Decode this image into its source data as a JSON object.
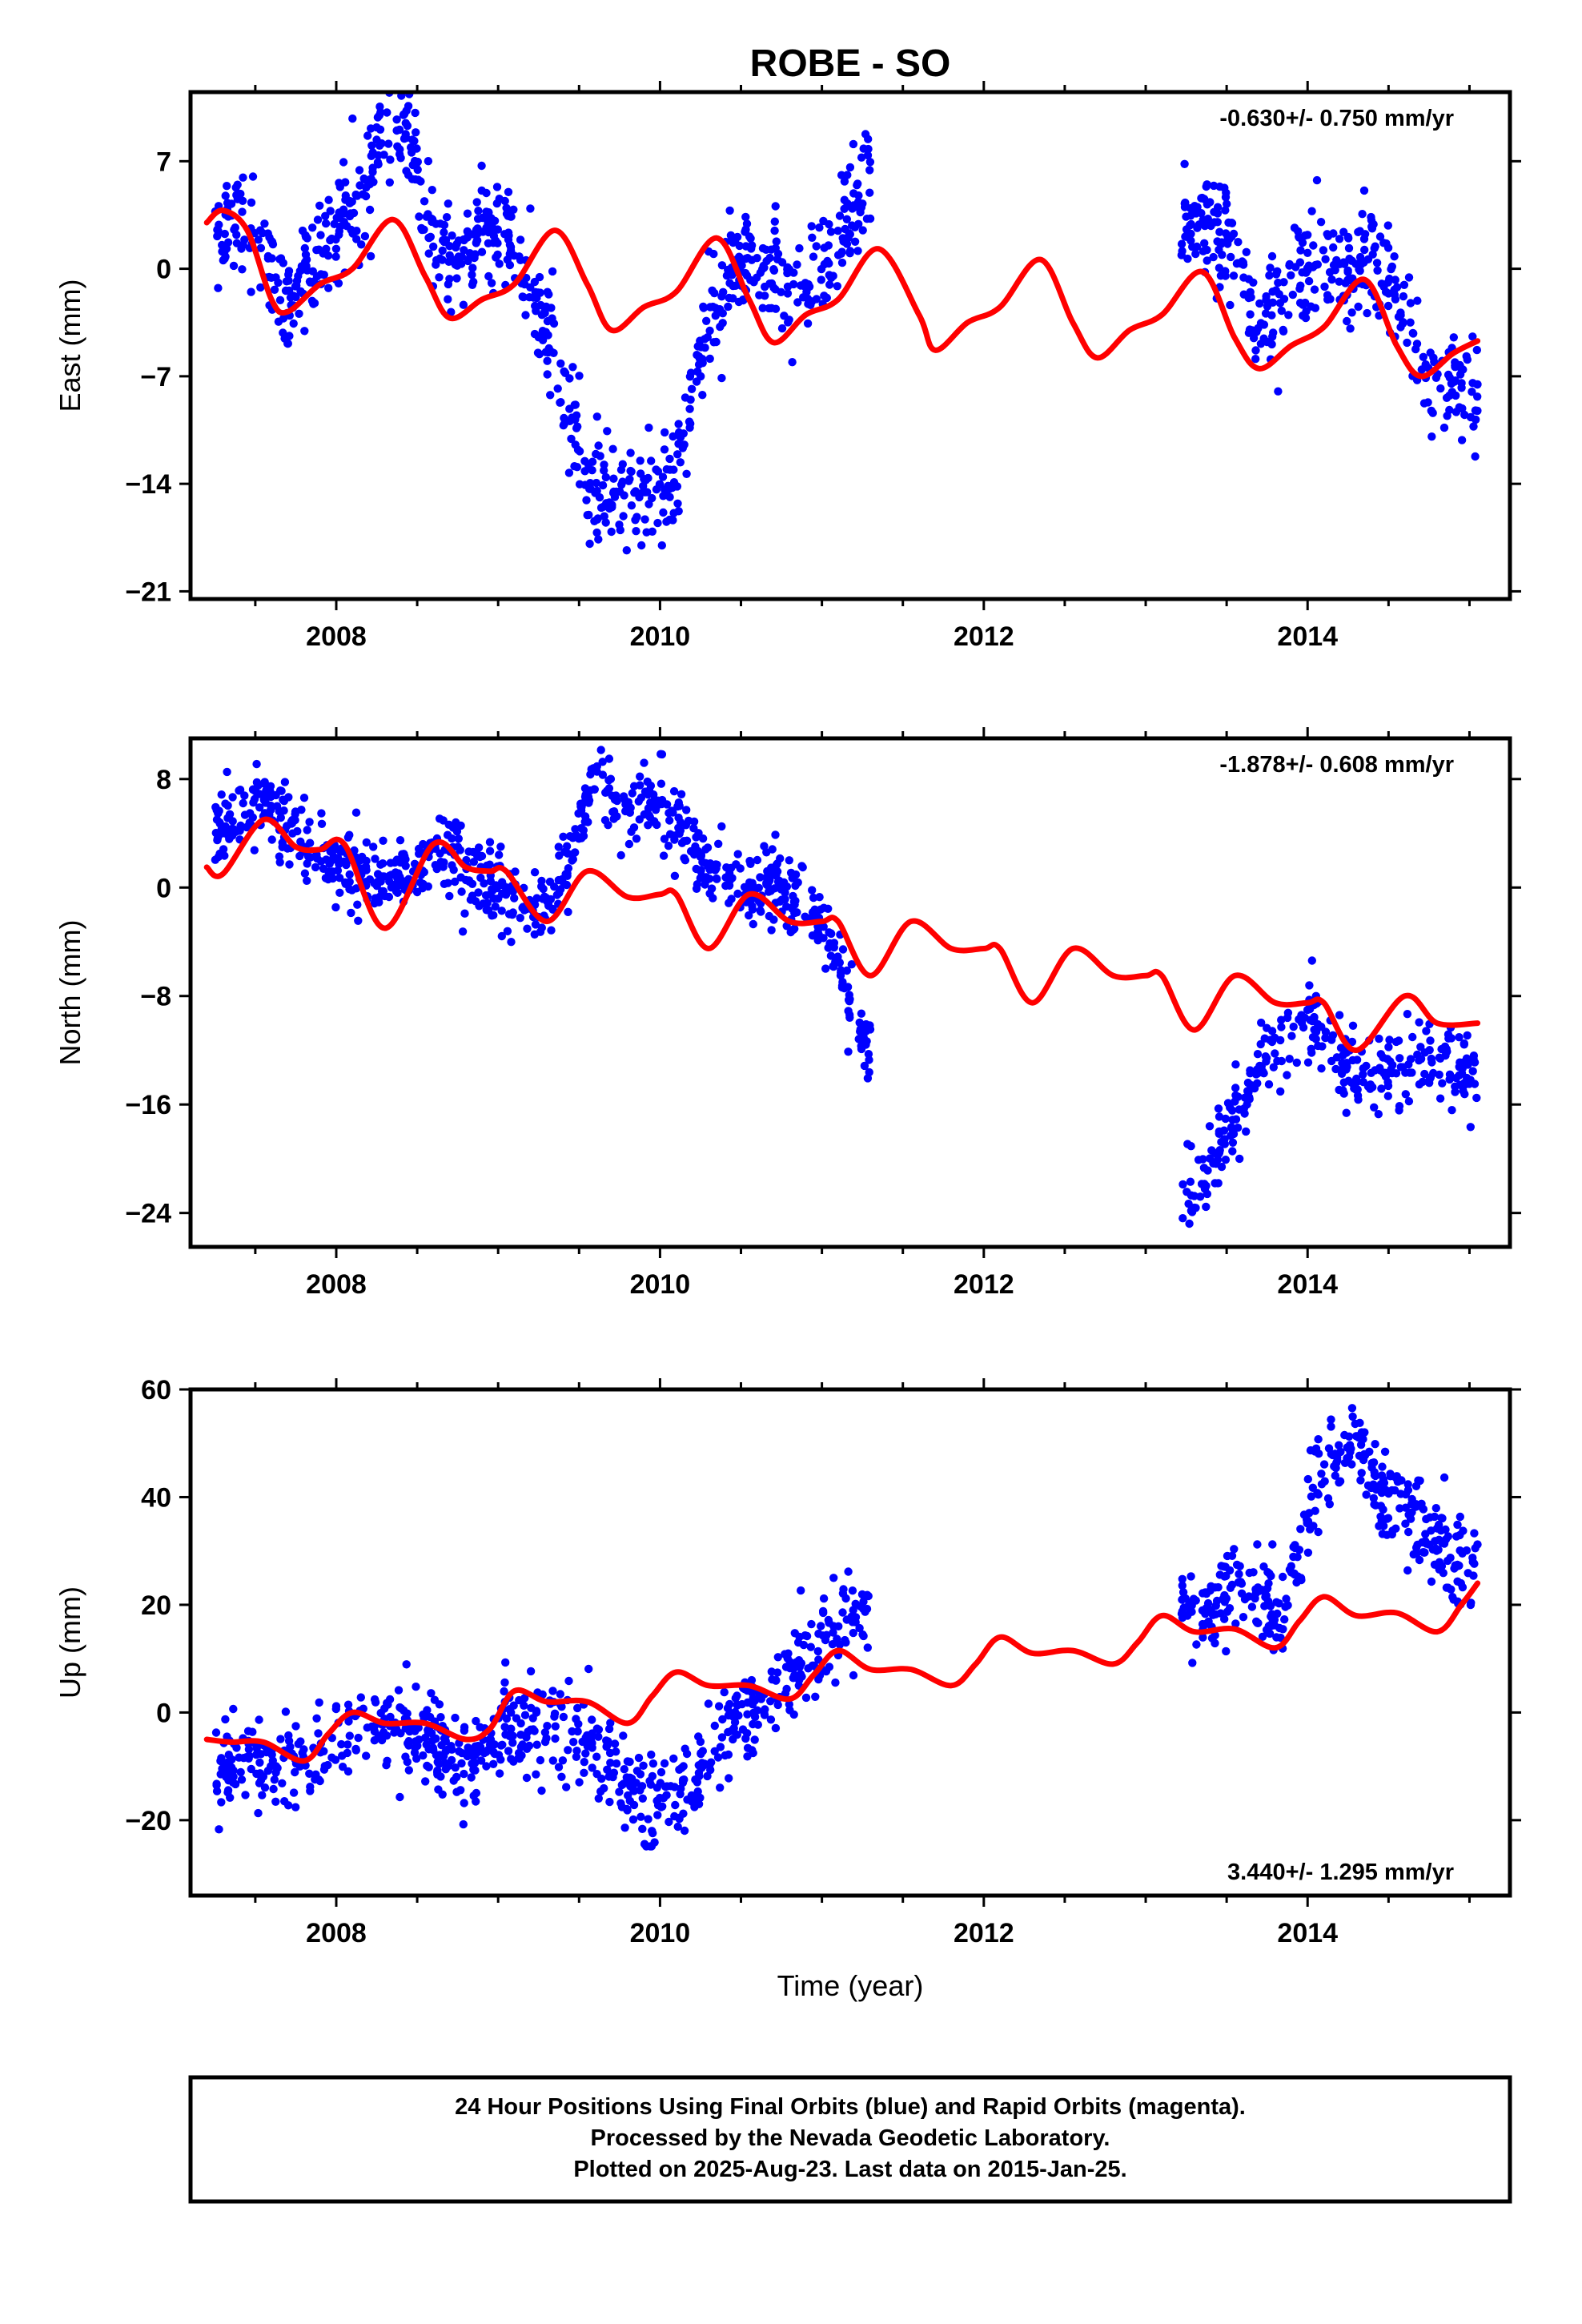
{
  "title": "ROBE - SO",
  "footer": {
    "line1": "24 Hour Positions Using Final Orbits (blue) and Rapid Orbits (magenta).",
    "line2": "Processed by the Nevada Geodetic Laboratory.",
    "line3": "Plotted on 2025-Aug-23. Last data on 2015-Jan-25."
  },
  "colors": {
    "data": "#0000ff",
    "model": "#ff0000",
    "frame": "#000000"
  },
  "chart_data": [
    {
      "type": "scatter",
      "ylabel": "East (mm)",
      "xlabel": "",
      "rate_text": "-0.630+/- 0.750 mm/yr",
      "rate_position": "top-right",
      "xlim": [
        2007.1,
        2015.25
      ],
      "ylim": [
        -21.5,
        11.5
      ],
      "xticks": [
        2008,
        2010,
        2012,
        2014
      ],
      "xticklabels": [
        "2008",
        "2010",
        "2012",
        "2014"
      ],
      "yticks": [
        7,
        0,
        -7,
        -14,
        -21
      ],
      "yticklabels": [
        "7",
        "0",
        "−7",
        "−14",
        "−21"
      ],
      "series": [
        {
          "kind": "points",
          "color": "#0000ff",
          "x": [
            2007.25,
            2007.4,
            2007.55,
            2007.7,
            2007.85,
            2008.0,
            2008.15,
            2008.3,
            2008.45,
            2008.6,
            2008.75,
            2008.9,
            2009.05,
            2009.2,
            2009.3,
            2009.45,
            2009.55,
            2009.65,
            2009.8,
            2009.95,
            2010.1,
            2010.2,
            2010.3,
            2010.45,
            2010.6,
            2010.75,
            2010.9,
            2011.05,
            2011.2,
            2011.28,
            2013.25,
            2013.4,
            2013.55,
            2013.7,
            2013.85,
            2014.0,
            2014.15,
            2014.3,
            2014.45,
            2014.6,
            2014.75,
            2014.9,
            2015.05
          ],
          "y": [
            2,
            3.5,
            1.5,
            -2.5,
            0.5,
            2.5,
            5,
            8.5,
            8.5,
            1.5,
            0.5,
            3,
            2.5,
            -1.5,
            -4,
            -9,
            -14,
            -15,
            -14.5,
            -15,
            -13.5,
            -8,
            -3,
            0,
            0.5,
            -1,
            -1,
            0.5,
            4,
            6,
            3,
            3,
            1.5,
            -4,
            -1.5,
            0,
            0,
            0,
            1.5,
            -4,
            -6.5,
            -8,
            -7.5
          ],
          "noise": 1.7,
          "count": 1600
        },
        {
          "kind": "line",
          "color": "#ff0000",
          "x": [
            2007.2,
            2007.3,
            2007.45,
            2007.6,
            2007.7,
            2007.9,
            2008.1,
            2008.35,
            2008.55,
            2008.7,
            2008.9,
            2009.1,
            2009.35,
            2009.55,
            2009.7,
            2009.9,
            2010.1,
            2010.35,
            2010.55,
            2010.7,
            2010.9,
            2011.1,
            2011.35,
            2011.6,
            2011.7,
            2011.9,
            2012.1,
            2012.35,
            2012.55,
            2012.7,
            2012.9,
            2013.1,
            2013.35,
            2013.55,
            2013.7,
            2013.9,
            2014.1,
            2014.35,
            2014.55,
            2014.7,
            2014.9,
            2015.05
          ],
          "y": [
            3,
            3.8,
            2.5,
            -2,
            -2.8,
            -1,
            0,
            3.2,
            -0.5,
            -3.2,
            -2,
            -1,
            2.5,
            -1,
            -4,
            -2.5,
            -1.5,
            2,
            -2,
            -4.8,
            -3,
            -2,
            1.3,
            -3,
            -5.3,
            -3.5,
            -2.5,
            0.6,
            -3.5,
            -5.8,
            -4,
            -3,
            -0.2,
            -4.5,
            -6.5,
            -5,
            -3.8,
            -0.7,
            -5,
            -7,
            -5.5,
            -4.7
          ]
        }
      ]
    },
    {
      "type": "scatter",
      "ylabel": "North (mm)",
      "xlabel": "",
      "rate_text": "-1.878+/- 0.608 mm/yr",
      "rate_position": "top-right",
      "xlim": [
        2007.1,
        2015.25
      ],
      "ylim": [
        -26.5,
        11
      ],
      "xticks": [
        2008,
        2010,
        2012,
        2014
      ],
      "xticklabels": [
        "2008",
        "2010",
        "2012",
        "2014"
      ],
      "yticks": [
        8,
        0,
        -8,
        -16,
        -24
      ],
      "yticklabels": [
        "8",
        "0",
        "−8",
        "−16",
        "−24"
      ],
      "series": [
        {
          "kind": "points",
          "color": "#0000ff",
          "x": [
            2007.25,
            2007.4,
            2007.6,
            2007.75,
            2007.9,
            2008.1,
            2008.3,
            2008.5,
            2008.7,
            2008.9,
            2009.1,
            2009.3,
            2009.5,
            2009.6,
            2009.75,
            2009.9,
            2010.05,
            2010.2,
            2010.35,
            2010.5,
            2010.7,
            2010.85,
            2011.0,
            2011.1,
            2011.2,
            2011.28,
            2013.3,
            2013.4,
            2013.55,
            2013.7,
            2013.85,
            2014.0,
            2014.15,
            2014.3,
            2014.45,
            2014.6,
            2014.75,
            2014.9,
            2015.05
          ],
          "y": [
            4,
            5.5,
            6.5,
            4,
            2,
            1,
            0.5,
            1.5,
            2.5,
            1,
            -1,
            -1.5,
            4,
            8,
            5.5,
            6,
            6.5,
            3,
            0.5,
            0,
            0,
            -1,
            -2.5,
            -5,
            -9,
            -12,
            -23,
            -20,
            -17,
            -13,
            -12,
            -9.5,
            -12,
            -14,
            -13,
            -14,
            -13,
            -13,
            -14
          ],
          "noise": 1.4,
          "count": 1500
        },
        {
          "kind": "line",
          "color": "#ff0000",
          "x": [
            2007.2,
            2007.3,
            2007.55,
            2007.75,
            2007.9,
            2008.05,
            2008.3,
            2008.6,
            2008.8,
            2008.95,
            2009.05,
            2009.3,
            2009.55,
            2009.8,
            2010.0,
            2010.1,
            2010.3,
            2010.55,
            2010.8,
            2011.0,
            2011.1,
            2011.3,
            2011.55,
            2011.8,
            2012.0,
            2012.1,
            2012.3,
            2012.55,
            2012.8,
            2013.0,
            2013.1,
            2013.3,
            2013.55,
            2013.8,
            2014.0,
            2014.1,
            2014.3,
            2014.6,
            2014.8,
            2015.05
          ],
          "y": [
            1.5,
            1,
            5,
            3,
            2.8,
            3.2,
            -3,
            3.2,
            1.5,
            1.2,
            1.2,
            -2.5,
            1.2,
            -0.7,
            -0.5,
            -0.5,
            -4.5,
            -0.5,
            -2.5,
            -2.5,
            -2.5,
            -6.5,
            -2.5,
            -4.5,
            -4.5,
            -4.5,
            -8.5,
            -4.5,
            -6.5,
            -6.5,
            -6.5,
            -10.5,
            -6.5,
            -8.5,
            -8.5,
            -8.5,
            -12,
            -8,
            -10,
            -10
          ]
        }
      ]
    },
    {
      "type": "scatter",
      "ylabel": "Up (mm)",
      "xlabel": "Time (year)",
      "rate_text": "3.440+/- 1.295 mm/yr",
      "rate_position": "bottom-right",
      "xlim": [
        2007.1,
        2015.25
      ],
      "ylim": [
        -34,
        60
      ],
      "xticks": [
        2008,
        2010,
        2012,
        2014
      ],
      "xticklabels": [
        "2008",
        "2010",
        "2012",
        "2014"
      ],
      "yticks": [
        60,
        40,
        20,
        0,
        -20
      ],
      "yticklabels": [
        "60",
        "40",
        "20",
        "0",
        "−20"
      ],
      "series": [
        {
          "kind": "points",
          "color": "#0000ff",
          "x": [
            2007.25,
            2007.45,
            2007.65,
            2007.85,
            2008.05,
            2008.25,
            2008.45,
            2008.65,
            2008.85,
            2009.05,
            2009.25,
            2009.45,
            2009.65,
            2009.85,
            2010.0,
            2010.15,
            2010.3,
            2010.45,
            2010.6,
            2010.75,
            2010.9,
            2011.05,
            2011.2,
            2011.28,
            2013.25,
            2013.4,
            2013.55,
            2013.7,
            2013.85,
            2014.0,
            2014.15,
            2014.3,
            2014.45,
            2014.6,
            2014.75,
            2014.9,
            2015.05
          ],
          "y": [
            -12,
            -10,
            -10,
            -10,
            -5,
            0,
            -3,
            -8,
            -10,
            -3,
            -3,
            -3,
            -8,
            -15,
            -17,
            -14,
            -8,
            -3,
            0,
            5,
            10,
            15,
            18,
            20,
            20,
            18,
            24,
            22,
            18,
            38,
            48,
            50,
            40,
            38,
            32,
            27,
            28
          ],
          "noise": 4.2,
          "count": 1500
        },
        {
          "kind": "line",
          "color": "#ff0000",
          "x": [
            2007.2,
            2007.35,
            2007.55,
            2007.8,
            2007.95,
            2008.1,
            2008.3,
            2008.55,
            2008.8,
            2008.95,
            2009.1,
            2009.3,
            2009.55,
            2009.8,
            2009.95,
            2010.1,
            2010.3,
            2010.55,
            2010.8,
            2010.95,
            2011.1,
            2011.3,
            2011.55,
            2011.8,
            2011.95,
            2012.1,
            2012.3,
            2012.55,
            2012.8,
            2012.95,
            2013.1,
            2013.3,
            2013.55,
            2013.8,
            2013.95,
            2014.1,
            2014.3,
            2014.55,
            2014.8,
            2014.95,
            2015.05
          ],
          "y": [
            -5,
            -5.5,
            -5.5,
            -9,
            -4,
            0,
            -2,
            -2,
            -5,
            -3,
            4,
            2,
            2,
            -2,
            3,
            7.5,
            5,
            5,
            2.5,
            7,
            11.5,
            8,
            8,
            5,
            9,
            14,
            11,
            11.5,
            9,
            13,
            18,
            15,
            15.5,
            12,
            17,
            21.5,
            18,
            18.5,
            15,
            20,
            24
          ]
        }
      ]
    }
  ]
}
